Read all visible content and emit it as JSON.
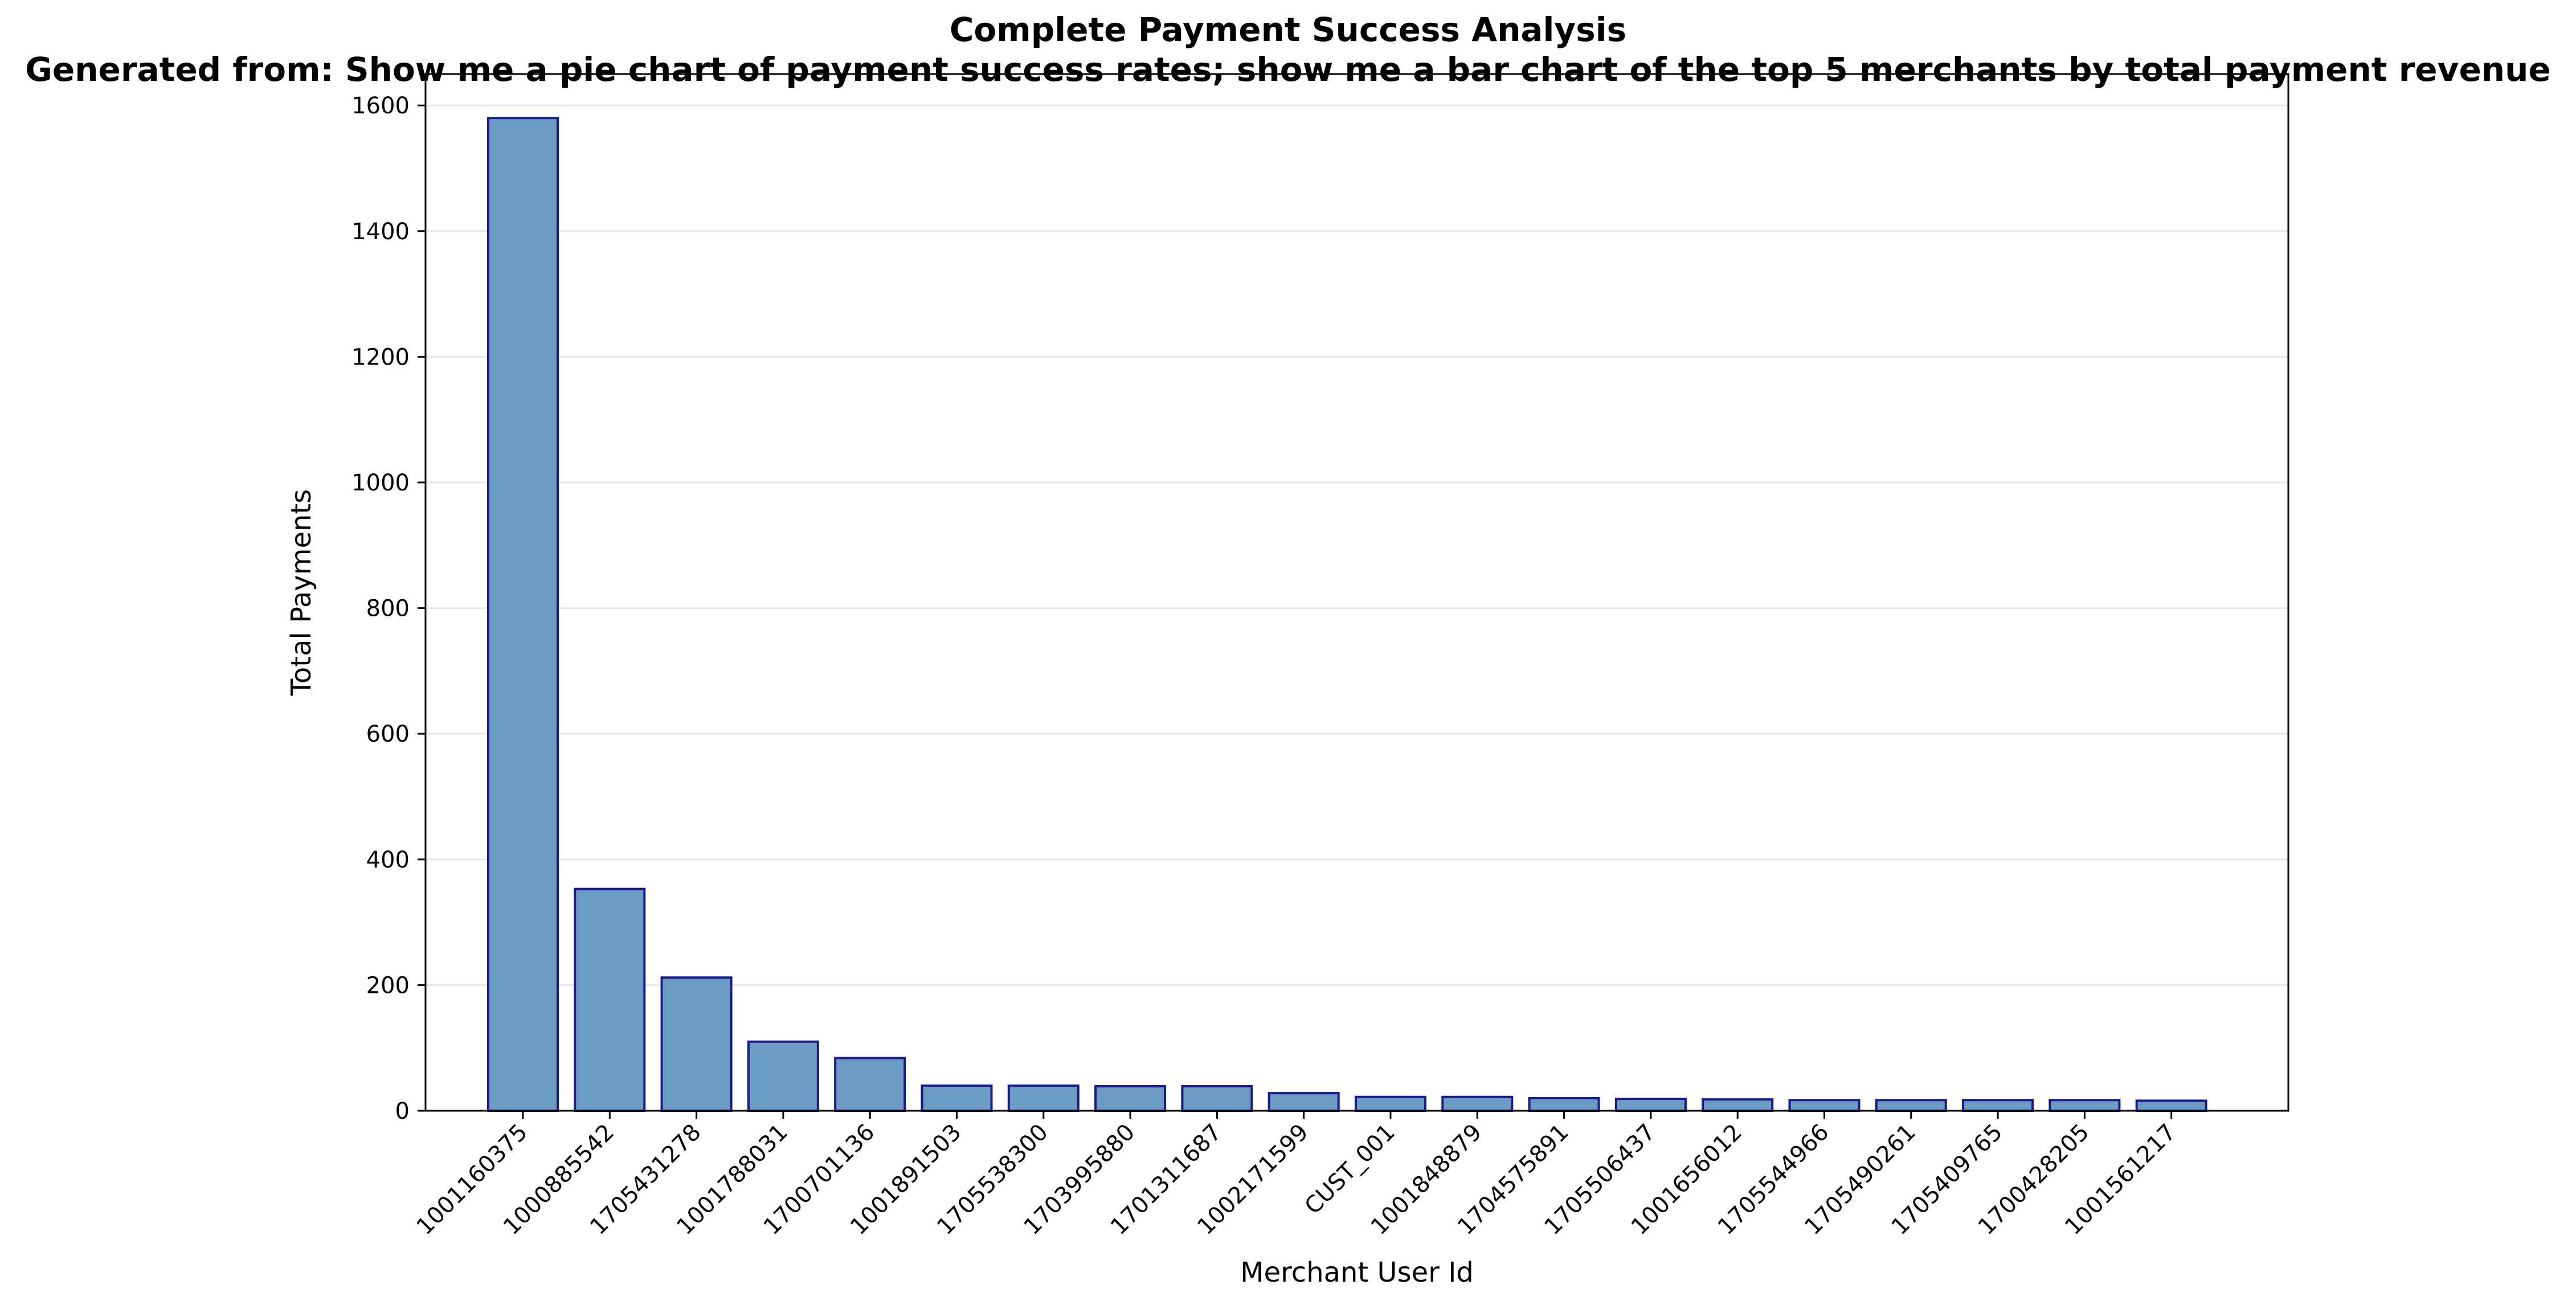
{
  "chart_data": {
    "type": "bar",
    "title": "Complete Payment Success Analysis",
    "subtitle": "Generated from: Show me a pie chart of payment success rates; show me a bar chart of the top 5 merchants by total payment revenue",
    "xlabel": "Merchant User Id",
    "ylabel": "Total Payments",
    "ylim": [
      0,
      1650
    ],
    "yticks": [
      0,
      200,
      400,
      600,
      800,
      1000,
      1200,
      1400,
      1600
    ],
    "grid": "y",
    "categories": [
      "1001160375",
      "1000885542",
      "1705431278",
      "1001788031",
      "1700701136",
      "1001891503",
      "1705538300",
      "1703995880",
      "1701311687",
      "1002171599",
      "CUST_001",
      "1001848879",
      "1704575891",
      "1705506437",
      "1001656012",
      "1705544966",
      "1705490261",
      "1705409765",
      "1700428205",
      "1001561217"
    ],
    "values": [
      1580,
      353,
      212,
      110,
      84,
      40,
      40,
      39,
      39,
      28,
      22,
      22,
      20,
      19,
      18,
      17,
      17,
      17,
      17,
      16
    ],
    "colors": {
      "bar_fill": "#6b9bc3",
      "bar_edge": "#1a1a8c",
      "grid": "#e6e6e6"
    }
  }
}
